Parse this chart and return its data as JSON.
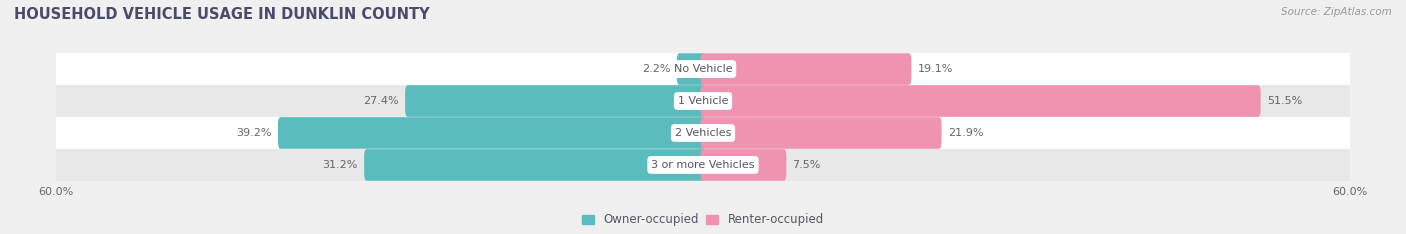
{
  "title": "HOUSEHOLD VEHICLE USAGE IN DUNKLIN COUNTY",
  "source": "Source: ZipAtlas.com",
  "categories": [
    "No Vehicle",
    "1 Vehicle",
    "2 Vehicles",
    "3 or more Vehicles"
  ],
  "owner_values": [
    2.2,
    27.4,
    39.2,
    31.2
  ],
  "renter_values": [
    19.1,
    51.5,
    21.9,
    7.5
  ],
  "owner_color": "#5bbcbe",
  "renter_color": "#f093b0",
  "axis_max": 60.0,
  "bar_height": 0.52,
  "row_colors": [
    "#f0f0f0",
    "#e8e8e8"
  ],
  "background_color": "#f0f0f0",
  "title_color": "#4a4a6a",
  "label_color": "#666666",
  "source_color": "#999999"
}
